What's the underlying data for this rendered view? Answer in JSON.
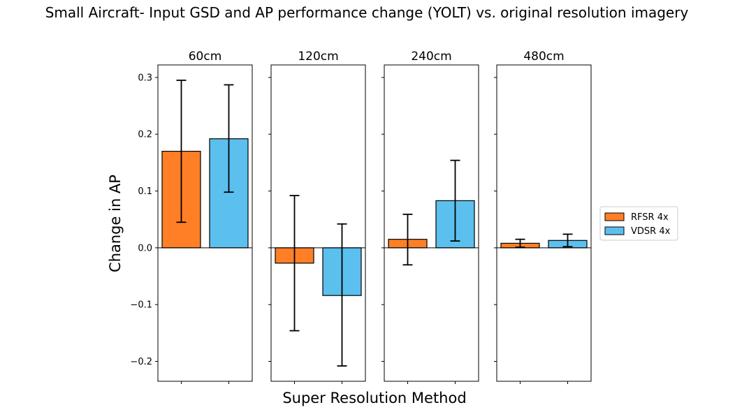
{
  "chart_data": {
    "type": "bar",
    "title": "Small Aircraft- Input GSD and AP performance change (YOLT) vs. original resolution imagery",
    "xlabel": "Super Resolution Method",
    "ylabel": "Change in AP",
    "ylim": [
      -0.235,
      0.322
    ],
    "yticks": [
      0.3,
      0.2,
      0.1,
      0.0,
      -0.1,
      -0.2
    ],
    "ytick_labels": [
      "0.3",
      "0.2",
      "0.1",
      "0.0",
      "−0.1",
      "−0.2"
    ],
    "grid": false,
    "legend_position": "right",
    "series": [
      {
        "name": "RFSR 4x",
        "color": "#ff7f27"
      },
      {
        "name": "VDSR 4x",
        "color": "#5bc0ed"
      }
    ],
    "panels": [
      {
        "title": "60cm",
        "values": [
          0.17,
          0.192
        ],
        "err_low": [
          0.045,
          0.098
        ],
        "err_high": [
          0.295,
          0.287
        ]
      },
      {
        "title": "120cm",
        "values": [
          -0.027,
          -0.084
        ],
        "err_low": [
          -0.146,
          -0.208
        ],
        "err_high": [
          0.092,
          0.042
        ]
      },
      {
        "title": "240cm",
        "values": [
          0.015,
          0.083
        ],
        "err_low": [
          -0.03,
          0.012
        ],
        "err_high": [
          0.059,
          0.154
        ]
      },
      {
        "title": "480cm",
        "values": [
          0.008,
          0.013
        ],
        "err_low": [
          0.001,
          0.002
        ],
        "err_high": [
          0.015,
          0.024
        ]
      }
    ]
  }
}
